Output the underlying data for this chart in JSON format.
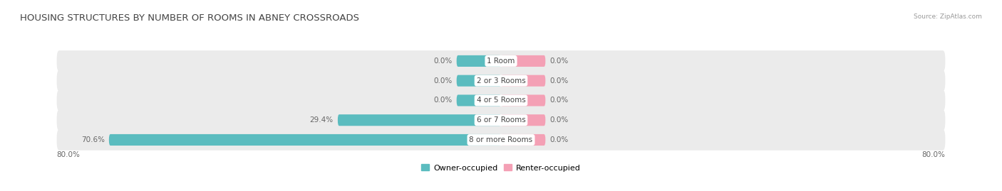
{
  "title": "HOUSING STRUCTURES BY NUMBER OF ROOMS IN ABNEY CROSSROADS",
  "source": "Source: ZipAtlas.com",
  "categories": [
    "1 Room",
    "2 or 3 Rooms",
    "4 or 5 Rooms",
    "6 or 7 Rooms",
    "8 or more Rooms"
  ],
  "owner_values": [
    0.0,
    0.0,
    0.0,
    29.4,
    70.6
  ],
  "renter_values": [
    0.0,
    0.0,
    0.0,
    0.0,
    0.0
  ],
  "owner_color": "#5bbcbf",
  "renter_color": "#f4a0b5",
  "row_bg_color": "#ebebeb",
  "x_min": -80.0,
  "x_max": 80.0,
  "stub_size": 8.0,
  "axis_label_left": "80.0%",
  "axis_label_right": "80.0%",
  "title_fontsize": 9.5,
  "label_fontsize": 7.5,
  "category_fontsize": 7.5,
  "legend_fontsize": 8,
  "source_fontsize": 6.5
}
